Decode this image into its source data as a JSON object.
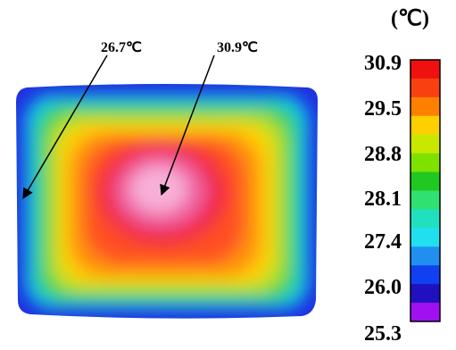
{
  "unit": "(℃)",
  "annotations": [
    {
      "label": "26.7℃"
    },
    {
      "label": "30.9℃"
    }
  ],
  "scale_labels": [
    "30.9",
    "29.5",
    "28.8",
    "28.1",
    "27.4",
    "26.0",
    "25.3"
  ]
}
